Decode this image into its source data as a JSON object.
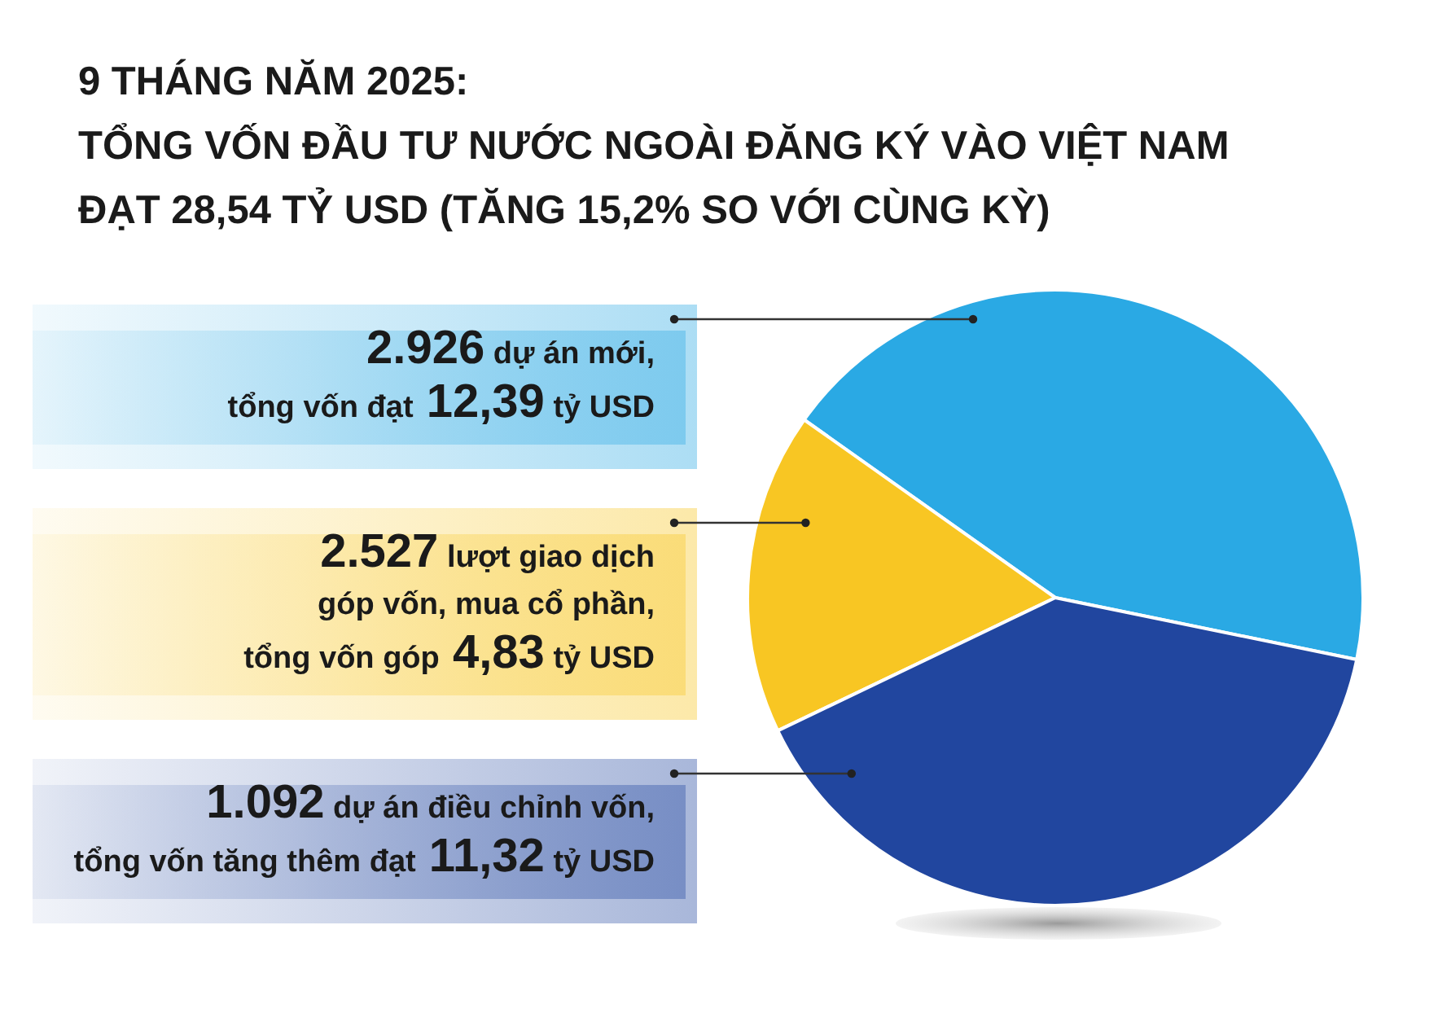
{
  "chart_data": {
    "type": "pie",
    "title": "9 THÁNG NĂM 2025:\nTỔNG VỐN ĐẦU TƯ NƯỚC NGOÀI ĐĂNG KÝ VÀO VIỆT NAM\nĐẠT 28,54 TỶ USD (TĂNG 15,2% SO VỚI CÙNG KỲ)",
    "categories": [
      "2.926 dự án mới,\ntổng vốn đạt 12,39 tỷ USD",
      "2.527 lượt giao dịch\ngóp vốn, mua cổ phần,\ntổng vốn góp 4,83 tỷ USD",
      "1.092 dự án điều chỉnh vốn,\ntổng vốn tăng thêm đạt 11,32 tỷ USD"
    ],
    "values": [
      12.39,
      4.83,
      11.32
    ],
    "colors": [
      "#2aa9e4",
      "#f8c623",
      "#21469f"
    ]
  }
}
